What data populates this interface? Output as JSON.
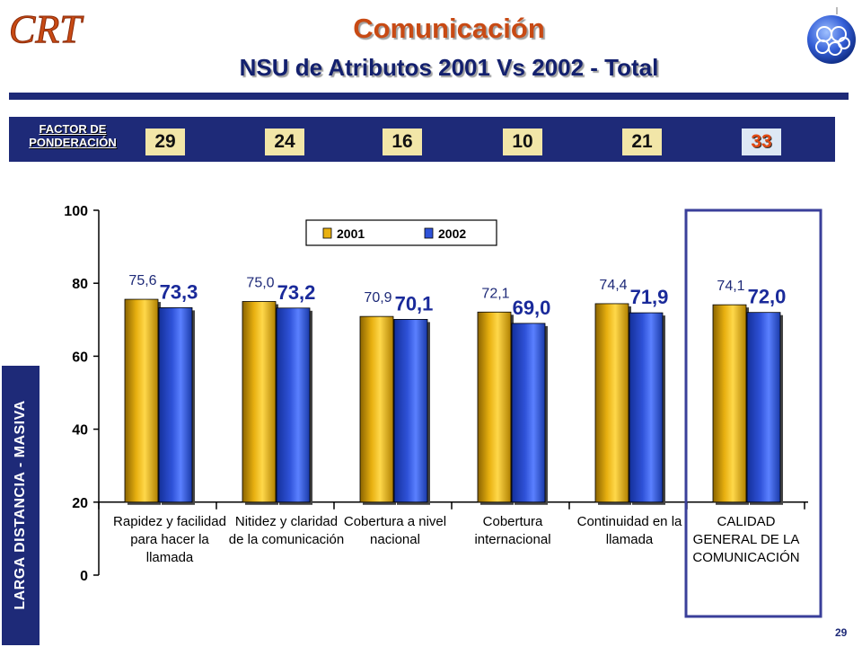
{
  "header": {
    "logo_text": "CRT",
    "title": "Comunicación",
    "subtitle": "NSU de Atributos 2001 Vs 2002 - Total"
  },
  "factor": {
    "label": "FACTOR DE PONDERACIÓN",
    "values": [
      "29",
      "24",
      "16",
      "10",
      "21",
      "33"
    ]
  },
  "sidebar": {
    "text": "LARGA DISTANCIA - MASIVA"
  },
  "page_number": "29",
  "colors": {
    "navy": "#1e2a78",
    "series_2001": "#e8b010",
    "series_2002": "#2f52d8",
    "highlight_box": "#3a3f9a",
    "title": "#c84a14"
  },
  "chart_data": {
    "type": "bar",
    "categories": [
      "Rapidez y facilidad para hacer la llamada",
      "Nitidez y claridad de la comunicación",
      "Cobertura a nivel nacional",
      "Cobertura internacional",
      "Continuidad en la llamada",
      "CALIDAD GENERAL DE LA COMUNICACIÓN"
    ],
    "series": [
      {
        "name": "2001",
        "values": [
          75.6,
          75.0,
          70.9,
          72.1,
          74.4,
          74.1
        ],
        "labels": [
          "75,6",
          "75,0",
          "70,9",
          "72,1",
          "74,4",
          "74,1"
        ]
      },
      {
        "name": "2002",
        "values": [
          73.3,
          73.2,
          70.1,
          69.0,
          71.9,
          72.0
        ],
        "labels": [
          "73,3",
          "73,2",
          "70,1",
          "69,0",
          "71,9",
          "72,0"
        ]
      }
    ],
    "ylim": [
      0,
      100
    ],
    "yticks": [
      "0",
      "20",
      "40",
      "60",
      "80",
      "100"
    ],
    "legend_position": "top-center",
    "highlighted_category": "CALIDAD GENERAL DE LA COMUNICACIÓN",
    "grid": false
  }
}
